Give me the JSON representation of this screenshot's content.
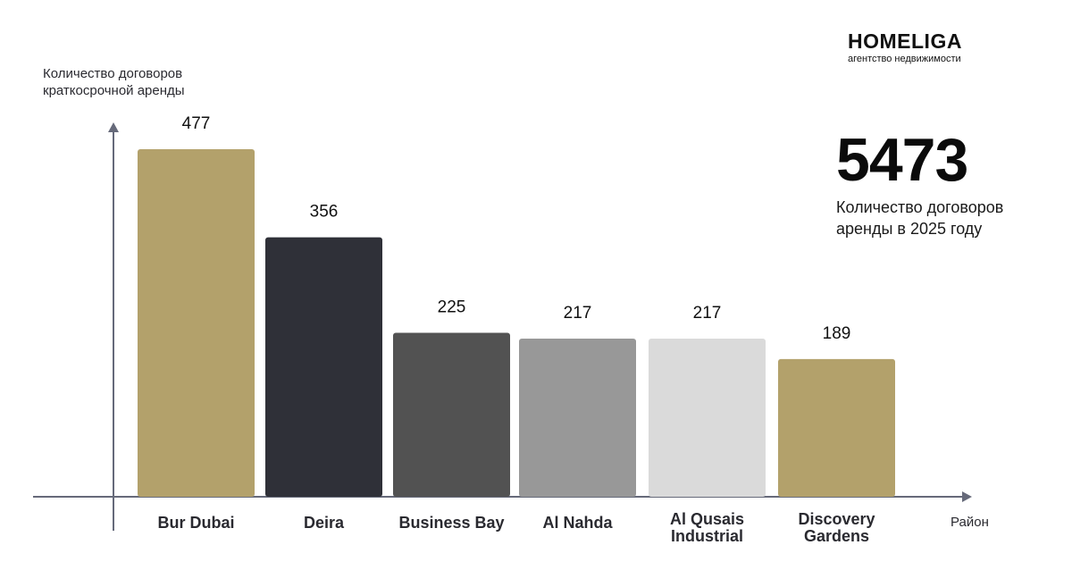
{
  "brand": {
    "name": "HOMELIGA",
    "subtitle": "агентство недвижимости"
  },
  "kpi": {
    "value": "5473",
    "label_line1": "Количество договоров",
    "label_line2": "аренды в 2025 году"
  },
  "chart_data": {
    "type": "bar",
    "title": "",
    "ylabel": [
      "Количество договоров",
      "краткосрочной аренды"
    ],
    "xlabel": "Район",
    "categories": [
      [
        "Bur Dubai"
      ],
      [
        "Deira"
      ],
      [
        "Business Bay"
      ],
      [
        "Al Nahda"
      ],
      [
        "Al Qusais",
        "Industrial"
      ],
      [
        "Discovery",
        "Gardens"
      ]
    ],
    "values": [
      477,
      356,
      225,
      217,
      217,
      189
    ],
    "ylim": [
      0,
      500
    ],
    "grid": false,
    "legend": "none",
    "bar_colors": [
      "#b3a16b",
      "#2f3038",
      "#525252",
      "#989898",
      "#dadada",
      "#b3a16b"
    ],
    "axis_color": "#666a7a",
    "label_color": "#2a2a30"
  }
}
